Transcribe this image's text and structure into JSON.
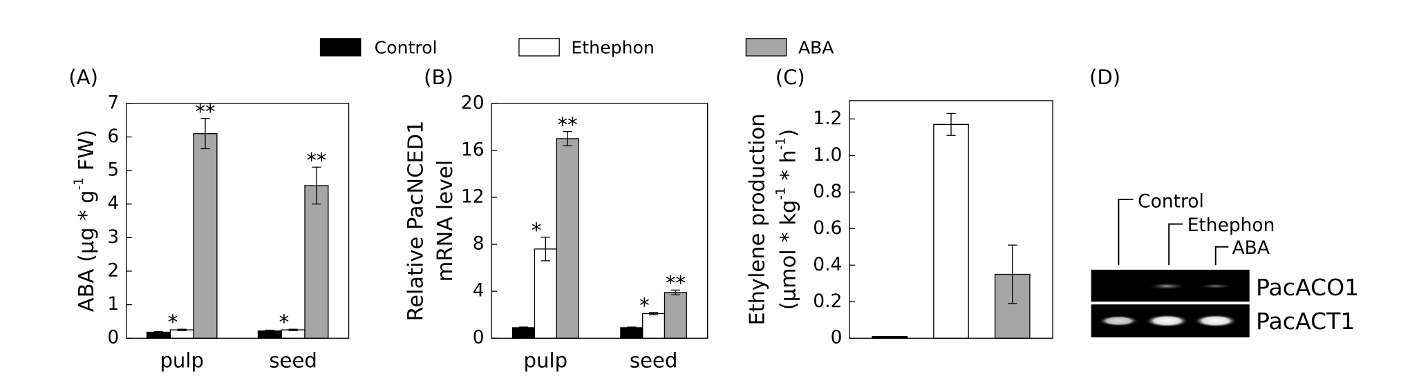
{
  "legend": [
    {
      "name": "Control",
      "color": "#000000"
    },
    {
      "name": "Ethephon",
      "color": "#ffffff"
    },
    {
      "name": "ABA",
      "color": "#a6a6a6"
    }
  ],
  "chart_data": [
    {
      "type": "bar",
      "panel": "(A)",
      "ylabel": [
        [
          "ABA (μg * g",
          "-1",
          " FW)"
        ]
      ],
      "categories": [
        "pulp",
        "seed"
      ],
      "series": [
        {
          "values": [
            0.18,
            0.22
          ],
          "errors": [
            0.02,
            0.02
          ]
        },
        {
          "values": [
            0.25,
            0.25
          ],
          "errors": [
            0.02,
            0.02
          ],
          "annotations": [
            "*",
            "*"
          ]
        },
        {
          "values": [
            6.1,
            4.55
          ],
          "errors": [
            0.45,
            0.55
          ],
          "annotations": [
            "**",
            "**"
          ]
        }
      ],
      "ylim": [
        0,
        7
      ],
      "yticks": [
        0,
        1,
        2,
        3,
        4,
        5,
        6,
        7
      ]
    },
    {
      "type": "bar",
      "panel": "(B)",
      "ylabel": [
        [
          "Relative PacNCED1"
        ],
        [
          "mRNA level"
        ]
      ],
      "categories": [
        "pulp",
        "seed"
      ],
      "series": [
        {
          "values": [
            0.9,
            0.9
          ],
          "errors": [
            0.05,
            0.05
          ]
        },
        {
          "values": [
            7.6,
            2.1
          ],
          "errors": [
            1.0,
            0.1
          ],
          "annotations": [
            "*",
            "*"
          ]
        },
        {
          "values": [
            17.0,
            3.9
          ],
          "errors": [
            0.6,
            0.2
          ],
          "annotations": [
            "**",
            "**"
          ]
        }
      ],
      "ylim": [
        0,
        20
      ],
      "yticks": [
        0,
        4,
        8,
        12,
        16,
        20
      ]
    },
    {
      "type": "bar",
      "panel": "(C)",
      "ylabel": [
        [
          "Ethylene production"
        ],
        [
          "(μmol * kg",
          "-1",
          " * h",
          "-1",
          ")"
        ]
      ],
      "categories": [
        null
      ],
      "series": [
        {
          "values": [
            0.01
          ],
          "errors": [
            0
          ]
        },
        {
          "values": [
            1.17
          ],
          "errors": [
            0.06
          ]
        },
        {
          "values": [
            0.35
          ],
          "errors": [
            0.16
          ]
        }
      ],
      "ylim": [
        0,
        1.3
      ],
      "yticks": [
        0,
        0.2,
        0.4,
        0.6,
        {
          "value": 1,
          "label": "1.0"
        },
        0.8,
        1.2
      ]
    }
  ],
  "gel": {
    "panel": "(D)",
    "lanes": [
      "Control",
      "Ethephon",
      "ABA"
    ],
    "genes": [
      "PacACO1",
      "PacACT1"
    ]
  }
}
